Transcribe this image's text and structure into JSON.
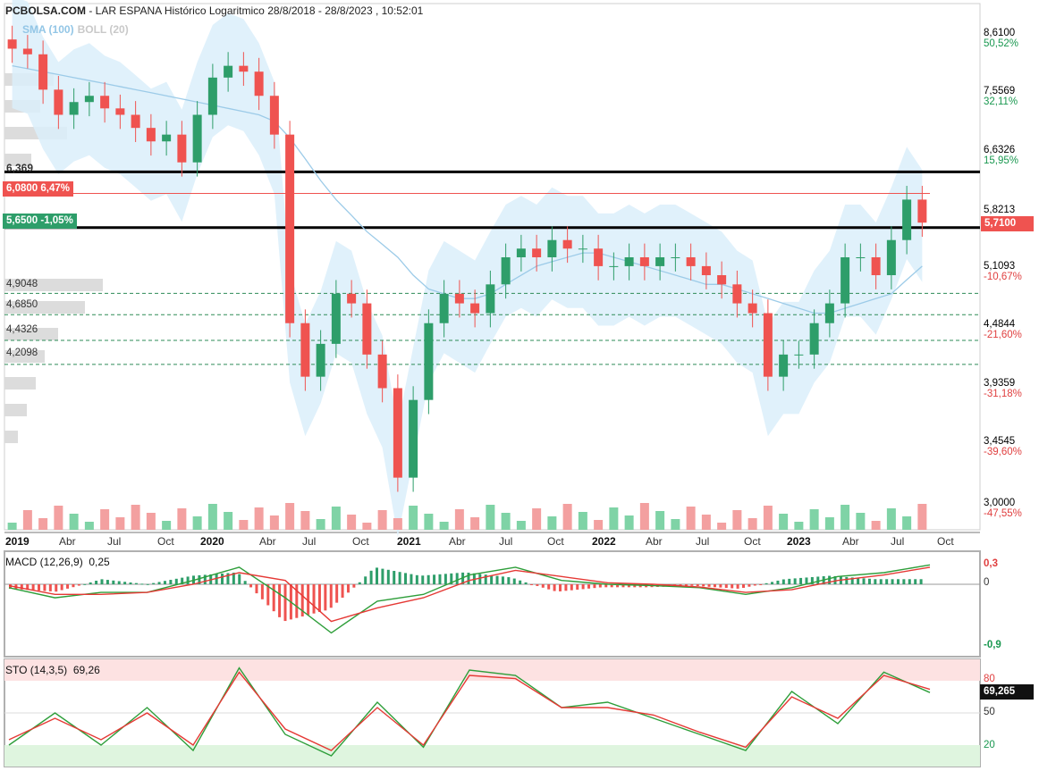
{
  "header": {
    "site": "PCBOLSA.COM",
    "title": "- LAR ESPANA Histórico Logaritmico 28/8/2018 - 28/8/2023 , 10:52:01"
  },
  "legend": {
    "sma": "SMA (100)",
    "boll": "BOLL (20)"
  },
  "price_axis": [
    {
      "price": "8,6100",
      "pct": "50,52%",
      "color": "#1a9850"
    },
    {
      "price": "7,5569",
      "pct": "32,11%",
      "color": "#1a9850"
    },
    {
      "price": "6,6326",
      "pct": "15,95%",
      "color": "#1a9850"
    },
    {
      "price": "5,8213",
      "pct": "",
      "color": "#1a9850"
    },
    {
      "price": "5,1093",
      "pct": "-10,67%",
      "color": "#e04040"
    },
    {
      "price": "4,4844",
      "pct": "-21,60%",
      "color": "#e04040"
    },
    {
      "price": "3,9359",
      "pct": "-31,18%",
      "color": "#e04040"
    },
    {
      "price": "3,4545",
      "pct": "-39,60%",
      "color": "#e04040"
    },
    {
      "price": "3,0000",
      "pct": "-47,55%",
      "color": "#e04040"
    }
  ],
  "current_price_tag": "5,7100",
  "levels": {
    "resistance_label": "6,369",
    "red_tag": "6,0800  6,47%",
    "green_tag": "5,6500  -1,05%",
    "supports": [
      "4,9048",
      "4,6850",
      "4,4326",
      "4,2098"
    ]
  },
  "x_axis": [
    {
      "label": "2019",
      "year": true
    },
    {
      "label": "Abr",
      "year": false
    },
    {
      "label": "Jul",
      "year": false
    },
    {
      "label": "Oct",
      "year": false
    },
    {
      "label": "2020",
      "year": true
    },
    {
      "label": "Abr",
      "year": false
    },
    {
      "label": "Jul",
      "year": false
    },
    {
      "label": "Oct",
      "year": false
    },
    {
      "label": "2021",
      "year": true
    },
    {
      "label": "Abr",
      "year": false
    },
    {
      "label": "Jul",
      "year": false
    },
    {
      "label": "Oct",
      "year": false
    },
    {
      "label": "2022",
      "year": true
    },
    {
      "label": "Abr",
      "year": false
    },
    {
      "label": "Jul",
      "year": false
    },
    {
      "label": "Oct",
      "year": false
    },
    {
      "label": "2023",
      "year": true
    },
    {
      "label": "Abr",
      "year": false
    },
    {
      "label": "Jul",
      "year": false
    },
    {
      "label": "Oct",
      "year": false
    }
  ],
  "macd": {
    "label": "MACD (12,26,9)",
    "value": "0,25",
    "axis": [
      "0,3",
      "0",
      "-0,9"
    ]
  },
  "sto": {
    "label": "STO (14,3,5)",
    "value": "69,26",
    "axis": [
      "80",
      "50",
      "20"
    ],
    "tag": "69,265"
  },
  "colors": {
    "up": "#2e9e6a",
    "down": "#ef5350",
    "boll_fill": "#dbeefa",
    "sma": "#9ccbe8"
  },
  "chart_data": [
    {
      "type": "candlestick",
      "title": "LAR ESPANA Histórico Logaritmico 28/8/2018 - 28/8/2023 , 10:52:01",
      "scale": "log",
      "ylim": [
        2.95,
        8.75
      ],
      "x": [
        "2018-09",
        "2018-10",
        "2018-11",
        "2018-12",
        "2019-01",
        "2019-02",
        "2019-03",
        "2019-04",
        "2019-05",
        "2019-06",
        "2019-07",
        "2019-08",
        "2019-09",
        "2019-10",
        "2019-11",
        "2019-12",
        "2020-01",
        "2020-02",
        "2020-03",
        "2020-04",
        "2020-05",
        "2020-06",
        "2020-07",
        "2020-08",
        "2020-09",
        "2020-10",
        "2020-11",
        "2020-12",
        "2021-01",
        "2021-02",
        "2021-03",
        "2021-04",
        "2021-05",
        "2021-06",
        "2021-07",
        "2021-08",
        "2021-09",
        "2021-10",
        "2021-11",
        "2021-12",
        "2022-01",
        "2022-02",
        "2022-03",
        "2022-04",
        "2022-05",
        "2022-06",
        "2022-07",
        "2022-08",
        "2022-09",
        "2022-10",
        "2022-11",
        "2022-12",
        "2023-01",
        "2023-02",
        "2023-03",
        "2023-04",
        "2023-05",
        "2023-06",
        "2023-07",
        "2023-08"
      ],
      "close": [
        8.3,
        8.2,
        7.6,
        7.2,
        7.4,
        7.5,
        7.3,
        7.2,
        7.0,
        6.8,
        6.9,
        6.5,
        7.2,
        7.8,
        8.0,
        7.9,
        7.5,
        6.9,
        4.6,
        4.1,
        4.4,
        4.9,
        4.8,
        4.3,
        4.0,
        3.3,
        3.9,
        4.6,
        4.9,
        4.8,
        4.7,
        5.0,
        5.3,
        5.4,
        5.3,
        5.5,
        5.4,
        5.4,
        5.2,
        5.2,
        5.3,
        5.2,
        5.3,
        5.3,
        5.2,
        5.1,
        5.0,
        4.8,
        4.7,
        4.1,
        4.3,
        4.3,
        4.6,
        4.8,
        5.3,
        5.3,
        5.1,
        5.5,
        6.0,
        5.71
      ],
      "sma100": [
        8.0,
        7.95,
        7.9,
        7.85,
        7.8,
        7.75,
        7.7,
        7.65,
        7.6,
        7.55,
        7.5,
        7.45,
        7.4,
        7.35,
        7.3,
        7.25,
        7.2,
        7.1,
        6.85,
        6.55,
        6.25,
        6.0,
        5.8,
        5.6,
        5.45,
        5.3,
        5.1,
        4.95,
        4.9,
        4.85,
        4.85,
        4.9,
        5.0,
        5.1,
        5.2,
        5.25,
        5.3,
        5.35,
        5.35,
        5.3,
        5.25,
        5.2,
        5.15,
        5.1,
        5.05,
        5.0,
        5.0,
        4.95,
        4.9,
        4.85,
        4.8,
        4.75,
        4.7,
        4.7,
        4.75,
        4.8,
        4.85,
        4.9,
        5.05,
        5.2
      ],
      "support_levels": [
        4.9048,
        4.685,
        4.4326,
        4.2098
      ],
      "resistance_levels": [
        6.369,
        5.65
      ],
      "reference_price": 6.08,
      "last": 5.71
    },
    {
      "type": "histogram",
      "title": "MACD (12,26,9)",
      "value": 0.25,
      "ylim": [
        -0.9,
        0.3
      ],
      "x": [
        "2018-09",
        "2018-12",
        "2019-03",
        "2019-06",
        "2019-09",
        "2019-12",
        "2020-03",
        "2020-06",
        "2020-09",
        "2020-12",
        "2021-03",
        "2021-06",
        "2021-09",
        "2021-12",
        "2022-03",
        "2022-06",
        "2022-09",
        "2022-12",
        "2023-03",
        "2023-06",
        "2023-08"
      ],
      "macd": [
        -0.05,
        -0.2,
        -0.12,
        -0.12,
        0.05,
        0.22,
        -0.2,
        -0.72,
        -0.25,
        -0.15,
        0.12,
        0.22,
        0.05,
        0.0,
        -0.02,
        -0.05,
        -0.15,
        -0.05,
        0.1,
        0.15,
        0.25
      ],
      "signal": [
        -0.02,
        -0.15,
        -0.15,
        -0.12,
        0.0,
        0.15,
        0.05,
        -0.55,
        -0.35,
        -0.2,
        0.05,
        0.18,
        0.1,
        0.02,
        0.0,
        -0.04,
        -0.12,
        -0.08,
        0.05,
        0.12,
        0.22
      ]
    },
    {
      "type": "line",
      "title": "STO (14,3,5)",
      "value": 69.26,
      "ylim": [
        0,
        100
      ],
      "x": [
        "2018-09",
        "2018-12",
        "2019-03",
        "2019-06",
        "2019-09",
        "2019-12",
        "2020-03",
        "2020-06",
        "2020-09",
        "2020-12",
        "2021-03",
        "2021-06",
        "2021-09",
        "2021-12",
        "2022-03",
        "2022-06",
        "2022-09",
        "2022-12",
        "2023-03",
        "2023-06",
        "2023-08"
      ],
      "k": [
        20,
        50,
        20,
        55,
        15,
        92,
        30,
        10,
        60,
        18,
        90,
        85,
        55,
        60,
        45,
        30,
        15,
        70,
        40,
        88,
        69
      ],
      "d": [
        25,
        45,
        25,
        50,
        20,
        88,
        35,
        15,
        55,
        20,
        85,
        82,
        55,
        55,
        48,
        32,
        18,
        65,
        45,
        85,
        72
      ]
    }
  ]
}
